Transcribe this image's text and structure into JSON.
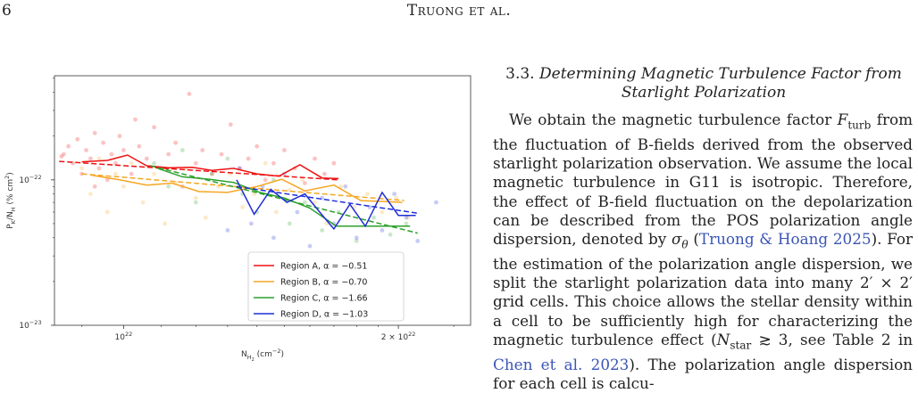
{
  "header": {
    "page_number": "6",
    "running_head_initial": "T",
    "running_head_rest": "ruong et al."
  },
  "section": {
    "number": "3.3.",
    "title_line1": "Determining Magnetic Turbulence Factor from",
    "title_line2": "Starlight Polarization"
  },
  "paragraph": {
    "t1": "We obtain the magnetic turbulence factor ",
    "f_turb_symbol": "F",
    "f_turb_sub": "turb",
    "t2": " from the fluctuation of B-fields derived from the observed starlight polarization observation. We assume the local magnetic turbulence in G11 is isotropic. Therefore, the effect of B-field fluctuation on the depolarization can be described from the POS polarization angle dispersion, denoted by ",
    "sigma_symbol": "σ",
    "sigma_sub": "θ",
    "t3": " (",
    "cite1": "Truong & Hoang 2025",
    "t4": "). For the estimation of the polarization angle dispersion, we split the starlight polarization data into many 2′ × 2′ grid cells. This choice allows the stellar density within a cell to be sufficiently high for characterizing the magnetic turbulence effect (",
    "nstar_symbol": "N",
    "nstar_sub": "star",
    "t5": " ≳ 3, see Table 2 in ",
    "cite2": "Chen et al. 2023",
    "t6": "). The polarization angle dispersion for each cell is calcu-"
  },
  "chart_data": {
    "type": "scatter",
    "xscale": "log",
    "yscale": "log",
    "xlim": [
      8.4e+21,
      2.4e+22
    ],
    "ylim": [
      1e-23,
      5.2e-22
    ],
    "grid": false,
    "legend_position": "bottom-right",
    "xlabel": {
      "main": "N",
      "sub": "H",
      "sub2": "2",
      "unit": " (cm",
      "exp": "−2",
      "close": ")"
    },
    "ylabel": {
      "main": "P",
      "sub": "K",
      "mid": "/N",
      "sub2": "H",
      "unit": " (% cm",
      "exp": "2",
      "close": ")"
    },
    "xticks": [
      {
        "value": 1e+22,
        "base": "10",
        "exp": "22"
      },
      {
        "value": 2e+22,
        "base": "2 × 10",
        "exp": "22"
      }
    ],
    "yticks": [
      {
        "value": 1e-22,
        "base": "10",
        "exp": "−22"
      },
      {
        "value": 1e-23,
        "base": "10",
        "exp": "−23"
      }
    ],
    "series": [
      {
        "name": "Region A, α = −0.51",
        "color": "#ee1111",
        "binned": [
          [
            9e+21,
            1.33e-22
          ],
          [
            9.6e+21,
            1.36e-22
          ],
          [
            1.01e+22,
            1.48e-22
          ],
          [
            1.06e+22,
            1.25e-22
          ],
          [
            1.12e+22,
            1.21e-22
          ],
          [
            1.19e+22,
            1.22e-22
          ],
          [
            1.25e+22,
            1.16e-22
          ],
          [
            1.32e+22,
            1.2e-22
          ],
          [
            1.4e+22,
            1.1e-22
          ],
          [
            1.48e+22,
            1.06e-22
          ],
          [
            1.56e+22,
            1.27e-22
          ],
          [
            1.65e+22,
            1.03e-22
          ],
          [
            1.72e+22,
            1.02e-22
          ]
        ],
        "fit": [
          [
            8.5e+21,
            1.34e-22
          ],
          [
            1.72e+22,
            1e-22
          ]
        ],
        "points": [
          [
            8.6e+21,
            1.5e-22
          ],
          [
            8.7e+21,
            1.7e-22
          ],
          [
            8.8e+21,
            1.3e-22
          ],
          [
            8.9e+21,
            1.9e-22
          ],
          [
            9e+21,
            1.1e-22
          ],
          [
            9.1e+21,
            1.6e-22
          ],
          [
            9.2e+21,
            1.4e-22
          ],
          [
            9.3e+21,
            2.1e-22
          ],
          [
            9.4e+21,
            1.2e-22
          ],
          [
            9.5e+21,
            1.8e-22
          ],
          [
            9.6e+21,
            1e-22
          ],
          [
            9.7e+21,
            1.5e-22
          ],
          [
            9.8e+21,
            1.3e-22
          ],
          [
            9.9e+21,
            2e-22
          ],
          [
            1e+22,
            1.6e-22
          ],
          [
            1.02e+22,
            1.1e-22
          ],
          [
            1.04e+22,
            1.7e-22
          ],
          [
            1.06e+22,
            1.4e-22
          ],
          [
            1.08e+22,
            2.3e-22
          ],
          [
            1.1e+22,
            1.2e-22
          ],
          [
            1.12e+22,
            1.5e-22
          ],
          [
            1.14e+22,
            1.8e-22
          ],
          [
            1.16e+22,
            9e-23
          ],
          [
            1.18e+22,
            3.9e-22
          ],
          [
            1.2e+22,
            1.3e-22
          ],
          [
            1.22e+22,
            1.6e-22
          ],
          [
            1.25e+22,
            1.1e-22
          ],
          [
            1.28e+22,
            1.5e-22
          ],
          [
            1.31e+22,
            2.4e-22
          ],
          [
            1.34e+22,
            1.2e-22
          ],
          [
            1.37e+22,
            1.4e-22
          ],
          [
            1.4e+22,
            1.7e-22
          ],
          [
            1.43e+22,
            1e-22
          ],
          [
            1.46e+22,
            1.3e-22
          ],
          [
            1.5e+22,
            1.6e-22
          ],
          [
            1.54e+22,
            1.2e-22
          ],
          [
            1.58e+22,
            9.5e-23
          ],
          [
            1.62e+22,
            1.4e-22
          ],
          [
            1.66e+22,
            1.1e-22
          ],
          [
            1.7e+22,
            1.3e-22
          ],
          [
            9.3e+21,
            9e-23
          ],
          [
            1.03e+22,
            2.6e-22
          ],
          [
            8.55e+21,
            1.45e-22
          ]
        ]
      },
      {
        "name": "Region B, α = −0.70",
        "color": "#f5a623",
        "binned": [
          [
            9.2e+21,
            1.08e-22
          ],
          [
            9.9e+21,
            1e-22
          ],
          [
            1.06e+22,
            9.2e-23
          ],
          [
            1.13e+22,
            9.5e-23
          ],
          [
            1.21e+22,
            8.3e-23
          ],
          [
            1.3e+22,
            8.2e-23
          ],
          [
            1.4e+22,
            9e-23
          ],
          [
            1.49e+22,
            1.01e-22
          ],
          [
            1.58e+22,
            8.4e-23
          ],
          [
            1.7e+22,
            9.2e-23
          ],
          [
            1.82e+22,
            7.2e-23
          ],
          [
            1.93e+22,
            7.1e-23
          ],
          [
            2.02e+22,
            7e-23
          ]
        ],
        "fit": [
          [
            9e+21,
            1.1e-22
          ],
          [
            2.03e+22,
            7.2e-23
          ]
        ],
        "points": [
          [
            9e+21,
            1.2e-22
          ],
          [
            9.2e+21,
            8e-23
          ],
          [
            9.4e+21,
            1.4e-22
          ],
          [
            9.6e+21,
            6e-23
          ],
          [
            9.8e+21,
            1.1e-22
          ],
          [
            1e+22,
            9e-23
          ],
          [
            1.02e+22,
            1.3e-22
          ],
          [
            1.05e+22,
            7e-23
          ],
          [
            1.08e+22,
            1.1e-22
          ],
          [
            1.11e+22,
            5e-23
          ],
          [
            1.14e+22,
            9.5e-23
          ],
          [
            1.17e+22,
            1.2e-22
          ],
          [
            1.2e+22,
            7.5e-23
          ],
          [
            1.23e+22,
            5.5e-23
          ],
          [
            1.27e+22,
            9e-23
          ],
          [
            1.31e+22,
            1.1e-22
          ],
          [
            1.35e+22,
            6.5e-23
          ],
          [
            1.39e+22,
            8e-23
          ],
          [
            1.43e+22,
            1.3e-22
          ],
          [
            1.47e+22,
            6e-23
          ],
          [
            1.52e+22,
            8.5e-23
          ],
          [
            1.57e+22,
            1e-22
          ],
          [
            1.62e+22,
            7e-23
          ],
          [
            1.67e+22,
            5e-23
          ],
          [
            1.73e+22,
            9e-23
          ],
          [
            1.79e+22,
            6.5e-23
          ],
          [
            1.85e+22,
            8e-23
          ],
          [
            1.92e+22,
            6e-23
          ],
          [
            1.99e+22,
            7.5e-23
          ],
          [
            2.05e+22,
            5.5e-23
          ]
        ]
      },
      {
        "name": "Region C, α = −1.66",
        "color": "#2ca02c",
        "binned": [
          [
            1.09e+22,
            1.2e-22
          ],
          [
            1.16e+22,
            1.05e-22
          ],
          [
            1.24e+22,
            1.01e-22
          ],
          [
            1.32e+22,
            9.6e-23
          ],
          [
            1.41e+22,
            8.2e-23
          ],
          [
            1.5e+22,
            7.5e-23
          ],
          [
            1.6e+22,
            6.4e-23
          ],
          [
            1.71e+22,
            4.8e-23
          ],
          [
            1.84e+22,
            4.8e-23
          ],
          [
            1.97e+22,
            4.8e-23
          ],
          [
            2.06e+22,
            4.8e-23
          ]
        ],
        "fit": [
          [
            1.07e+22,
            1.25e-22
          ],
          [
            2.1e+22,
            4.3e-23
          ]
        ],
        "points": [
          [
            1.08e+22,
            1.3e-22
          ],
          [
            1.12e+22,
            9e-23
          ],
          [
            1.16e+22,
            1.6e-22
          ],
          [
            1.2e+22,
            7e-23
          ],
          [
            1.25e+22,
            1.1e-22
          ],
          [
            1.3e+22,
            1.4e-22
          ],
          [
            1.35e+22,
            8e-23
          ],
          [
            1.4e+22,
            6e-23
          ],
          [
            1.46e+22,
            1e-22
          ],
          [
            1.52e+22,
            5e-23
          ],
          [
            1.58e+22,
            7e-23
          ],
          [
            1.65e+22,
            4.5e-23
          ],
          [
            1.72e+22,
            6e-23
          ],
          [
            1.8e+22,
            3.8e-23
          ],
          [
            1.88e+22,
            5.5e-23
          ],
          [
            1.96e+22,
            4.2e-23
          ],
          [
            2.04e+22,
            5e-23
          ]
        ]
      },
      {
        "name": "Region D, α = −1.03",
        "color": "#1f2ed6",
        "binned": [
          [
            1.33e+22,
            1e-22
          ],
          [
            1.39e+22,
            5.8e-23
          ],
          [
            1.45e+22,
            8.6e-23
          ],
          [
            1.51e+22,
            7e-23
          ],
          [
            1.58e+22,
            8e-23
          ],
          [
            1.64e+22,
            6e-23
          ],
          [
            1.7e+22,
            4.6e-23
          ],
          [
            1.77e+22,
            6.8e-23
          ],
          [
            1.84e+22,
            4.8e-23
          ],
          [
            1.92e+22,
            8.2e-23
          ],
          [
            2e+22,
            5.7e-23
          ],
          [
            2.09e+22,
            5.7e-23
          ]
        ],
        "fit": [
          [
            1.33e+22,
            9e-23
          ],
          [
            2.1e+22,
            5.9e-23
          ]
        ],
        "points": [
          [
            1.34e+22,
            1.2e-22
          ],
          [
            1.38e+22,
            5e-23
          ],
          [
            1.42e+22,
            9e-23
          ],
          [
            1.46e+22,
            4e-23
          ],
          [
            1.5e+22,
            1.1e-22
          ],
          [
            1.55e+22,
            6e-23
          ],
          [
            1.6e+22,
            3.5e-23
          ],
          [
            1.65e+22,
            7.5e-23
          ],
          [
            1.7e+22,
            5e-23
          ],
          [
            1.75e+22,
            9e-23
          ],
          [
            1.8e+22,
            4e-23
          ],
          [
            1.86e+22,
            6.5e-23
          ],
          [
            1.92e+22,
            4.5e-23
          ],
          [
            1.98e+22,
            8e-23
          ],
          [
            2.04e+22,
            5.5e-23
          ],
          [
            2.1e+22,
            3.8e-23
          ],
          [
            2.2e+22,
            7e-23
          ],
          [
            1.3e+22,
            4.5e-23
          ],
          [
            1.68e+22,
            2.5e-23
          ]
        ]
      }
    ]
  }
}
